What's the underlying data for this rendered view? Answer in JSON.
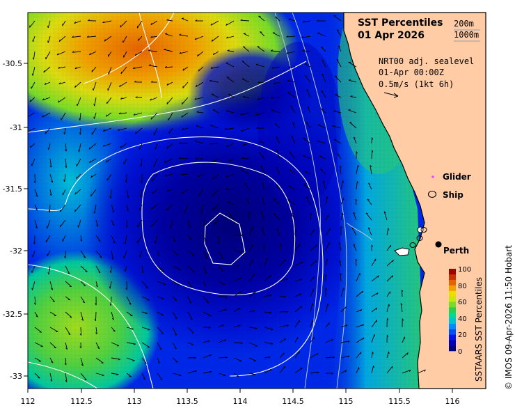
{
  "title": {
    "line1": "SST Percentiles",
    "line2": "01 Apr 2026"
  },
  "isobaths": {
    "shallow": "200m",
    "deep": "1000m"
  },
  "vector_info": {
    "line1": "NRT00 adj. sealevel",
    "line2": "01-Apr 00:00Z",
    "line3": "0.5m/s (1kt 6h)"
  },
  "legend": {
    "glider": "Glider",
    "ship": "Ship",
    "city": "Perth"
  },
  "colorbar": {
    "label": "SSTAARS SST Percentiles",
    "ticks": [
      "100",
      "80",
      "60",
      "40",
      "20",
      "0"
    ],
    "colors": [
      "#00007a",
      "#0000b4",
      "#0014e6",
      "#0050f0",
      "#008cff",
      "#00c0d8",
      "#00d896",
      "#28d050",
      "#78dc28",
      "#c8e614",
      "#f0dc00",
      "#f0a000",
      "#e66400",
      "#c83200",
      "#a00000"
    ]
  },
  "credit": "© IMOS 09-Apr-2026 11:50 Hobart",
  "axes": {
    "lon_ticks": [
      "112",
      "112.5",
      "113",
      "113.5",
      "114",
      "114.5",
      "115",
      "115.5",
      "116"
    ],
    "lat_ticks": [
      "-30.5",
      "-31",
      "-31.5",
      "-32",
      "-32.5",
      "-33"
    ]
  },
  "colors": {
    "land": "#ffcca6",
    "coast": "#000000",
    "contour": "#ffffff"
  }
}
